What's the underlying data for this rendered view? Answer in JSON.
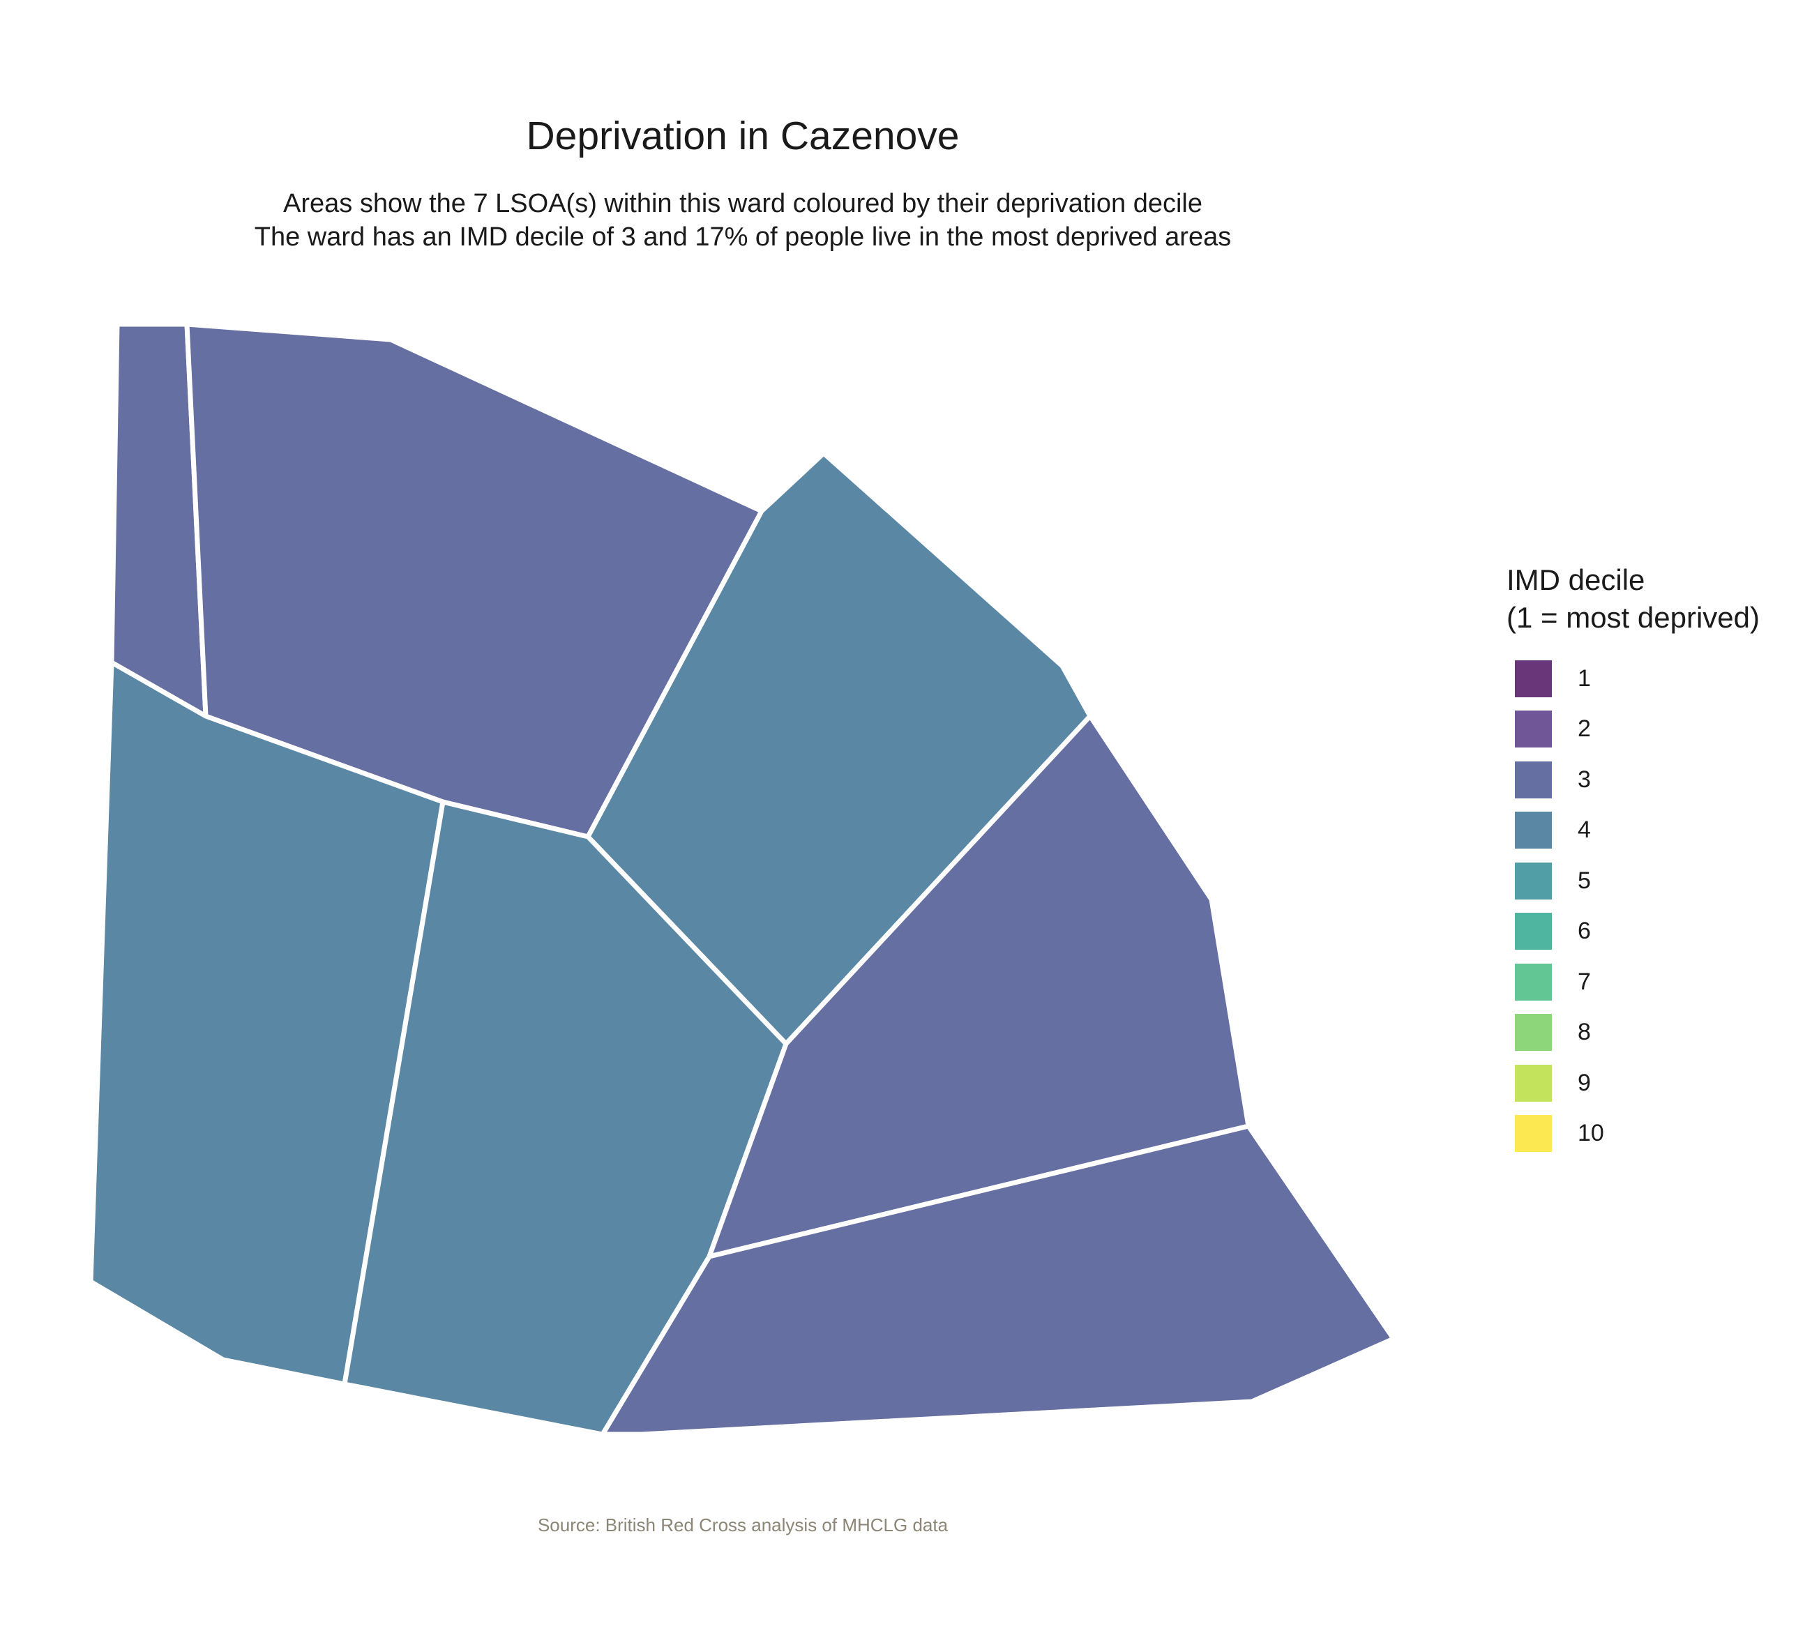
{
  "title": "Deprivation in Cazenove",
  "subtitle_lines": [
    "Areas show the 7 LSOA(s) within this ward coloured by their deprivation decile",
    "The ward has an IMD decile of 3 and 17% of people live in the most deprived areas"
  ],
  "legend": {
    "title_lines": [
      "IMD decile",
      "(1 = most deprived)"
    ],
    "items": [
      {
        "label": "1",
        "color": "#6a367a"
      },
      {
        "label": "2",
        "color": "#705597"
      },
      {
        "label": "3",
        "color": "#656fa1"
      },
      {
        "label": "4",
        "color": "#5a88a4"
      },
      {
        "label": "5",
        "color": "#529ea7"
      },
      {
        "label": "6",
        "color": "#50b5a0"
      },
      {
        "label": "7",
        "color": "#62c694"
      },
      {
        "label": "8",
        "color": "#8dd67a"
      },
      {
        "label": "9",
        "color": "#c4e35c"
      },
      {
        "label": "10",
        "color": "#fce952"
      }
    ]
  },
  "areas": [
    {
      "name": "far-north-west-lsoa",
      "decile": 3
    },
    {
      "name": "north-lsoa",
      "decile": 3
    },
    {
      "name": "north-east-lsoa",
      "decile": 4
    },
    {
      "name": "west-lsoa",
      "decile": 4
    },
    {
      "name": "central-lsoa",
      "decile": 4
    },
    {
      "name": "east-lsoa",
      "decile": 3
    },
    {
      "name": "south-east-lsoa",
      "decile": 3
    }
  ],
  "caption": "Source: British Red Cross analysis of MHCLG data"
}
